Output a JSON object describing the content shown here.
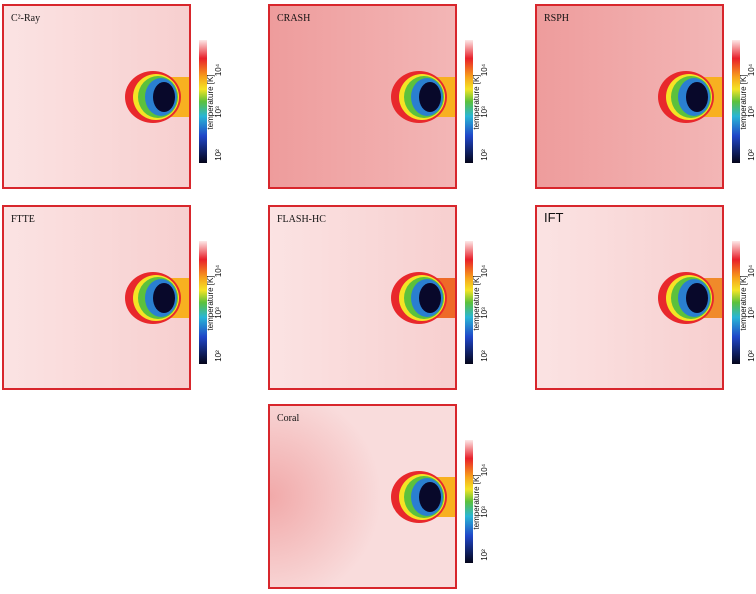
{
  "panels": [
    {
      "title": "C²-Ray"
    },
    {
      "title": "CRASH"
    },
    {
      "title": "RSPH"
    },
    {
      "title": "FTTE"
    },
    {
      "title": "FLASH-HC"
    },
    {
      "title": "IFT"
    },
    {
      "title": "Coral"
    }
  ],
  "colorbar": {
    "label": "temperature [K]",
    "ticks": [
      {
        "value": 10000,
        "label": "10⁴"
      },
      {
        "value": 1000,
        "label": "10³"
      },
      {
        "value": 100,
        "label": "10²"
      }
    ]
  }
}
